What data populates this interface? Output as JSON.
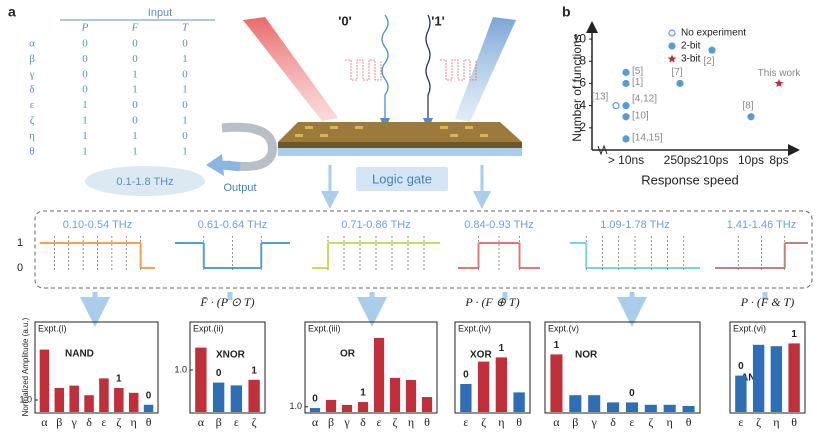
{
  "panels": [
    "a",
    "b"
  ],
  "table": {
    "header": "Input",
    "columns": [
      "P",
      "F",
      "T"
    ],
    "rows": [
      [
        "α",
        "0",
        "0",
        "0"
      ],
      [
        "β",
        "0",
        "0",
        "1"
      ],
      [
        "γ",
        "0",
        "1",
        "0"
      ],
      [
        "δ",
        "0",
        "1",
        "1"
      ],
      [
        "ε",
        "1",
        "0",
        "0"
      ],
      [
        "ζ",
        "1",
        "0",
        "1"
      ],
      [
        "η",
        "1",
        "1",
        "0"
      ],
      [
        "θ",
        "1",
        "1",
        "1"
      ]
    ]
  },
  "diagram": {
    "beam_labels": [
      "'0'",
      "'1'"
    ],
    "gate": "Logic gate",
    "output": "Output",
    "band": "0.1-1.8 THz"
  },
  "waveforms": {
    "level_labels": [
      "1",
      "0"
    ],
    "channels": [
      {
        "range": "0.10-0.54 THz",
        "color": "#f4a259",
        "levels": [
          1,
          1,
          1,
          1,
          1,
          1,
          1,
          0
        ]
      },
      {
        "range": "0.61-0.64 THz",
        "color": "#5b9bd5",
        "levels": [
          1,
          0,
          0,
          1
        ]
      },
      {
        "range": "0.71-0.86 THz",
        "color": "#c9d96a",
        "levels": [
          0,
          1,
          1,
          1,
          1,
          1,
          1,
          1
        ]
      },
      {
        "range": "0.84-0.93 THz",
        "color": "#e07878",
        "levels": [
          0,
          1,
          1,
          0
        ]
      },
      {
        "range": "1.09-1.78 THz",
        "color": "#7fd0e6",
        "levels": [
          1,
          0,
          0,
          0,
          0,
          0,
          0,
          0
        ]
      },
      {
        "range": "1.41-1.46 THz",
        "color": "#b98585",
        "levels": [
          0,
          0,
          0,
          1
        ]
      }
    ]
  },
  "chart_data": [
    {
      "type": "scatter",
      "xlabel": "Response speed",
      "ylabel": "Number of functions",
      "categories": [
        "> 10ns",
        "250ps",
        "210ps",
        "10ps",
        "8ps"
      ],
      "ylim": [
        0,
        11
      ],
      "yticks": [
        2,
        4,
        6,
        8,
        10
      ],
      "legend": "upper right",
      "series": [
        {
          "name": "No experiment",
          "color": "#5b9bd5",
          "marker": "open-circle",
          "x": [
            "> 10ns"
          ],
          "values": [
            4
          ],
          "labels": [
            "[13]"
          ]
        },
        {
          "name": "2-bit",
          "color": "#5b9bd5",
          "marker": "circle",
          "x": [
            "> 10ns",
            "> 10ns",
            "> 10ns",
            "> 10ns",
            "> 10ns",
            "250ps",
            "210ps",
            "10ps"
          ],
          "values": [
            7,
            6,
            4,
            3,
            1,
            6,
            9,
            3
          ],
          "labels": [
            "[5]",
            "[1]",
            "[4,12]",
            "[10]",
            "[14,15]",
            "[7]",
            "[2]",
            "[8]"
          ]
        },
        {
          "name": "3-bit",
          "color": "#c0303a",
          "marker": "star",
          "x": [
            "8ps"
          ],
          "values": [
            6
          ],
          "labels": [
            "This work"
          ]
        }
      ]
    },
    {
      "type": "bar",
      "label": "Expt.(i)",
      "title": "NAND",
      "ylabel": "Normalized Amplitude (a.u.)",
      "categories": [
        "α",
        "β",
        "γ",
        "δ",
        "ε",
        "ζ",
        "η",
        "θ"
      ],
      "values": [
        1.21,
        1.05,
        1.06,
        1.02,
        1.09,
        1.05,
        1.03,
        0.98
      ],
      "colors": [
        "#c0303a",
        "#c0303a",
        "#c0303a",
        "#c0303a",
        "#c0303a",
        "#c0303a",
        "#c0303a",
        "#2f6db5"
      ],
      "ylim": [
        0.95,
        1.3
      ],
      "yticks": [
        {
          "value": 1,
          "label": "1.0"
        }
      ],
      "annotations": [
        {
          "text": "1",
          "category": "ζ"
        },
        {
          "text": "0",
          "category": "θ"
        }
      ]
    },
    {
      "type": "bar",
      "label": "Expt.(ii)",
      "title": "XNOR",
      "formula": "F̄ · (P ⊙ T)",
      "categories": [
        "α",
        "β",
        "ε",
        "ζ"
      ],
      "values": [
        1.16,
        0.91,
        0.89,
        0.93
      ],
      "colors": [
        "#c0303a",
        "#2f6db5",
        "#2f6db5",
        "#c0303a"
      ],
      "ylim": [
        0.7,
        1.3
      ],
      "yticks": [
        {
          "value": 1,
          "label": "1.0"
        }
      ],
      "annotations": [
        {
          "text": "0",
          "category": "β"
        },
        {
          "text": "1",
          "category": "ζ"
        }
      ]
    },
    {
      "type": "bar",
      "label": "Expt.(iii)",
      "title": "OR",
      "categories": [
        "α",
        "β",
        "γ",
        "δ",
        "ε",
        "ζ",
        "η",
        "θ"
      ],
      "values": [
        0.995,
        1.026,
        1.007,
        1.018,
        1.262,
        1.11,
        1.102,
        1.037
      ],
      "colors": [
        "#2f6db5",
        "#c0303a",
        "#c0303a",
        "#c0303a",
        "#c0303a",
        "#c0303a",
        "#c0303a",
        "#c0303a"
      ],
      "ylim": [
        0.98,
        1.3
      ],
      "yticks": [
        {
          "value": 1,
          "label": "1.0"
        }
      ],
      "annotations": [
        {
          "text": "0",
          "category": "α"
        },
        {
          "text": "1",
          "category": "δ"
        }
      ]
    },
    {
      "type": "bar",
      "label": "Expt.(iv)",
      "title": "XOR",
      "formula": "P · (F ⊕ T)",
      "categories": [
        "ε",
        "ζ",
        "η",
        "θ"
      ],
      "values": [
        0.9,
        1.06,
        1.09,
        0.84
      ],
      "colors": [
        "#2f6db5",
        "#c0303a",
        "#c0303a",
        "#2f6db5"
      ],
      "ylim": [
        0.7,
        1.3
      ],
      "yticks": [],
      "annotations": [
        {
          "text": "0",
          "category": "ε"
        },
        {
          "text": "1",
          "category": "η"
        }
      ]
    },
    {
      "type": "bar",
      "label": "Expt.(v)",
      "title": "NOR",
      "categories": [
        "α",
        "β",
        "γ",
        "δ",
        "ε",
        "ζ",
        "η",
        "θ"
      ],
      "values": [
        1.19,
        1.02,
        1.02,
        0.99,
        0.99,
        0.98,
        0.98,
        0.975
      ],
      "colors": [
        "#c0303a",
        "#2f6db5",
        "#2f6db5",
        "#2f6db5",
        "#2f6db5",
        "#2f6db5",
        "#2f6db5",
        "#2f6db5"
      ],
      "ylim": [
        0.95,
        1.3
      ],
      "yticks": [],
      "annotations": [
        {
          "text": "1",
          "category": "α"
        },
        {
          "text": "0",
          "category": "ε"
        }
      ]
    },
    {
      "type": "bar",
      "label": "Expt.(vi)",
      "title": "AND",
      "formula": "P · (F & T)",
      "categories": [
        "ε",
        "ζ",
        "η",
        "θ"
      ],
      "values": [
        0.96,
        1.18,
        1.17,
        1.19
      ],
      "colors": [
        "#2f6db5",
        "#2f6db5",
        "#2f6db5",
        "#c0303a"
      ],
      "ylim": [
        0.7,
        1.3
      ],
      "yticks": [],
      "annotations": [
        {
          "text": "0",
          "category": "ε"
        },
        {
          "text": "1",
          "category": "θ"
        }
      ]
    }
  ]
}
